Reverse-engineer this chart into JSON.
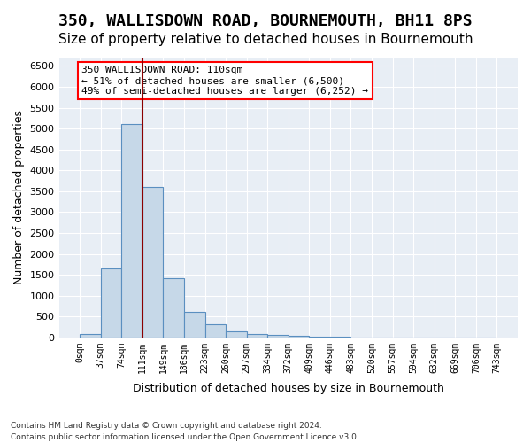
{
  "title": "350, WALLISDOWN ROAD, BOURNEMOUTH, BH11 8PS",
  "subtitle": "Size of property relative to detached houses in Bournemouth",
  "xlabel": "Distribution of detached houses by size in Bournemouth",
  "ylabel": "Number of detached properties",
  "footnote1": "Contains HM Land Registry data © Crown copyright and database right 2024.",
  "footnote2": "Contains public sector information licensed under the Open Government Licence v3.0.",
  "bin_labels": [
    "0sqm",
    "37sqm",
    "74sqm",
    "111sqm",
    "149sqm",
    "186sqm",
    "223sqm",
    "260sqm",
    "297sqm",
    "334sqm",
    "372sqm",
    "409sqm",
    "446sqm",
    "483sqm",
    "520sqm",
    "557sqm",
    "594sqm",
    "632sqm",
    "669sqm",
    "706sqm",
    "743sqm"
  ],
  "bar_values": [
    70,
    1650,
    5100,
    3600,
    1420,
    620,
    310,
    145,
    80,
    55,
    35,
    20,
    10,
    5,
    3,
    2,
    1,
    1,
    0,
    0
  ],
  "bar_color": "#c6d8e8",
  "bar_edge_color": "#5a8fc0",
  "property_line_x": 110,
  "property_line_bin": 3,
  "annotation_text": "350 WALLISDOWN ROAD: 110sqm\n← 51% of detached houses are smaller (6,500)\n49% of semi-detached houses are larger (6,252) →",
  "annotation_box_color": "white",
  "annotation_box_edge": "red",
  "vline_color": "darkred",
  "ylim": [
    0,
    6700
  ],
  "yticks": [
    0,
    500,
    1000,
    1500,
    2000,
    2500,
    3000,
    3500,
    4000,
    4500,
    5000,
    5500,
    6000,
    6500
  ],
  "background_color": "#e8eef5",
  "title_fontsize": 13,
  "subtitle_fontsize": 11
}
